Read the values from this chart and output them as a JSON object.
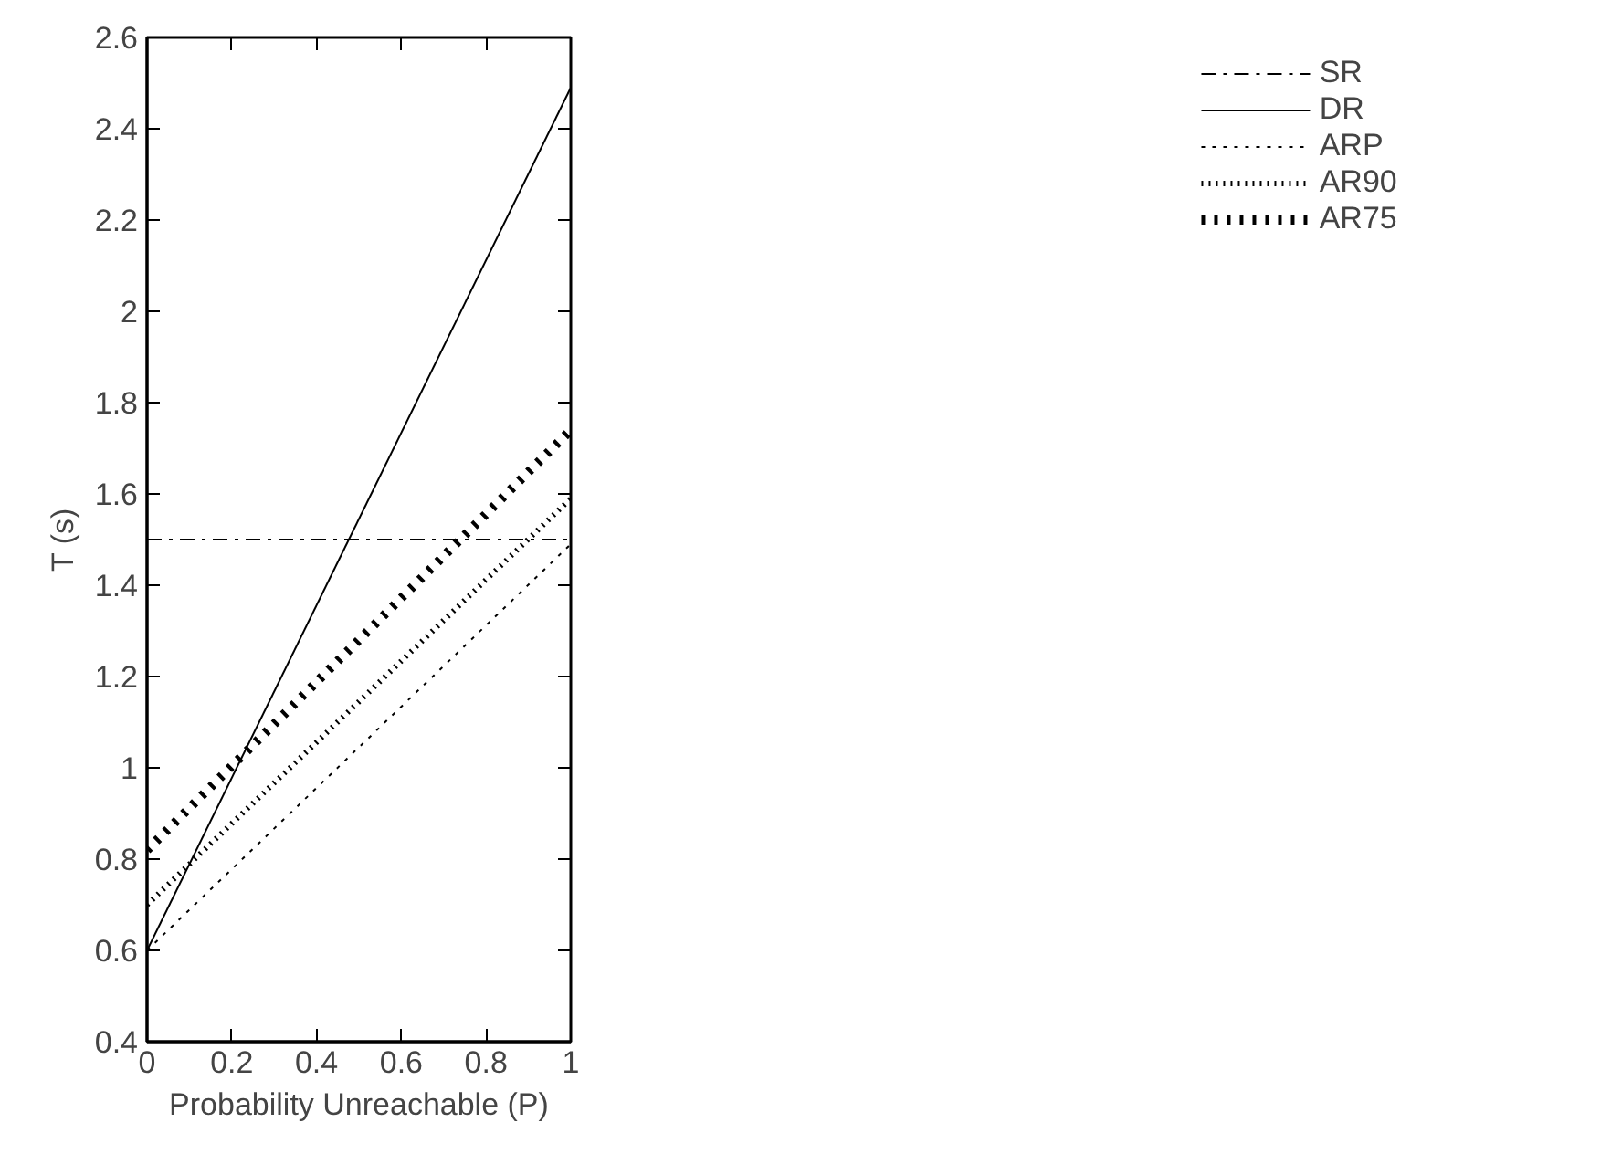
{
  "chart_data": {
    "type": "line",
    "xlabel": "Probability Unreachable (P)",
    "ylabel": "T (s)",
    "x": [
      0,
      1
    ],
    "xlim": [
      0,
      1
    ],
    "ylim": [
      0.4,
      2.6
    ],
    "xticks": [
      0,
      0.2,
      0.4,
      0.6,
      0.8,
      1
    ],
    "yticks": [
      0.4,
      0.6,
      0.8,
      1,
      1.2,
      1.4,
      1.6,
      1.8,
      2,
      2.2,
      2.4,
      2.6
    ],
    "grid": false,
    "legend": "top right",
    "series": [
      {
        "name": "SR",
        "color": "#000000",
        "values": [
          1.5,
          1.5
        ],
        "line_style": "dashdot"
      },
      {
        "name": "DR",
        "color": "#000000",
        "values": [
          0.6,
          2.49
        ],
        "line_style": "solid"
      },
      {
        "name": "ARP",
        "color": "#000000",
        "values": [
          0.6,
          1.49
        ],
        "line_style": "dotted"
      },
      {
        "name": "AR90",
        "color": "#000000",
        "values": [
          0.7,
          1.59
        ],
        "line_style": "dotted"
      },
      {
        "name": "AR75",
        "color": "#000000",
        "values": [
          0.82,
          1.74
        ],
        "line_style": "dotted"
      }
    ]
  }
}
